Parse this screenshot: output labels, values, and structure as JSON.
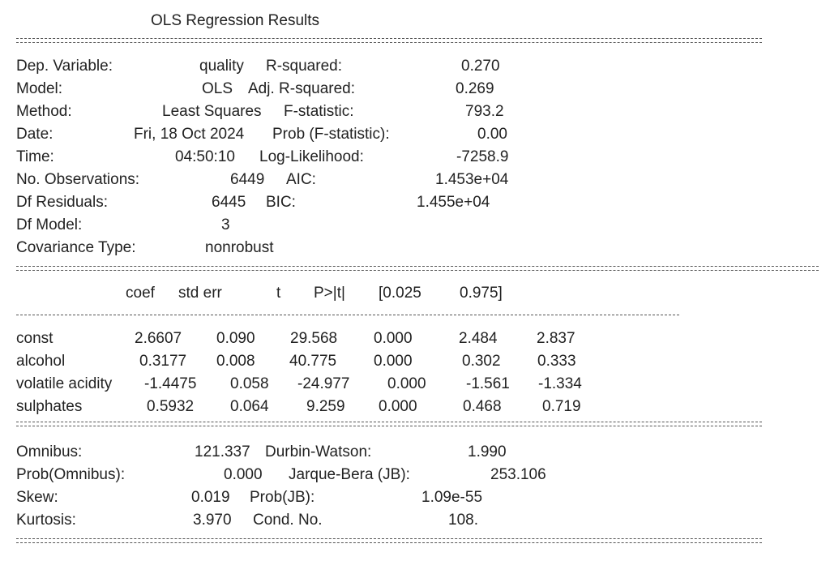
{
  "title": "OLS Regression Results",
  "top": {
    "rows": [
      [
        "Dep. Variable:",
        "quality",
        "R-squared:",
        "0.270"
      ],
      [
        "Model:",
        "OLS",
        "Adj. R-squared:",
        "0.269"
      ],
      [
        "Method:",
        "Least Squares",
        "F-statistic:",
        "793.2"
      ],
      [
        "Date:",
        "Fri, 18 Oct 2024",
        "Prob (F-statistic):",
        "0.00"
      ],
      [
        "Time:",
        "04:50:10",
        "Log-Likelihood:",
        "-7258.9"
      ],
      [
        "No. Observations:",
        "6449",
        "AIC:",
        "1.453e+04"
      ],
      [
        "Df Residuals:",
        "6445",
        "BIC:",
        "1.455e+04"
      ],
      [
        "Df Model:",
        "3"
      ],
      [
        "Covariance Type:",
        "nonrobust"
      ]
    ]
  },
  "coef": {
    "header": [
      "coef",
      "std err",
      "t",
      "P>|t|",
      "[0.025",
      "0.975]"
    ],
    "rows": [
      [
        "const",
        "2.6607",
        "0.090",
        "29.568",
        "0.000",
        "2.484",
        "2.837"
      ],
      [
        "alcohol",
        "0.3177",
        "0.008",
        "40.775",
        "0.000",
        "0.302",
        "0.333"
      ],
      [
        "volatile acidity",
        "-1.4475",
        "0.058",
        "-24.977",
        "0.000",
        "-1.561",
        "-1.334"
      ],
      [
        "sulphates",
        "0.5932",
        "0.064",
        "9.259",
        "0.000",
        "0.468",
        "0.719"
      ]
    ]
  },
  "bottom": {
    "rows": [
      [
        "Omnibus:",
        "121.337",
        "Durbin-Watson:",
        "1.990"
      ],
      [
        "Prob(Omnibus):",
        "0.000",
        "Jarque-Bera (JB):",
        "253.106"
      ],
      [
        "Skew:",
        "0.019",
        "Prob(JB):",
        "1.09e-55"
      ],
      [
        "Kurtosis:",
        "3.970",
        "Cond. No.",
        "108."
      ]
    ]
  }
}
